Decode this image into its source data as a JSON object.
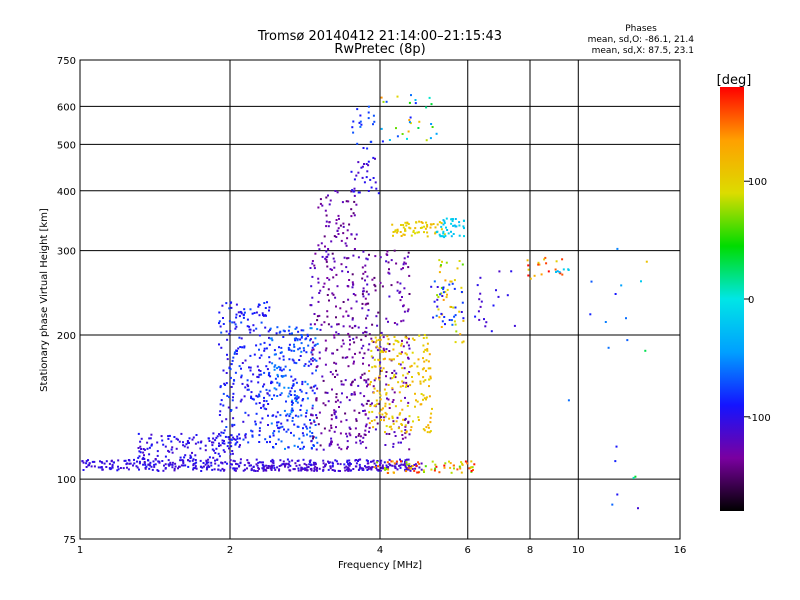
{
  "chart_data": {
    "type": "scatter",
    "title": "Tromsø 20140412 21:14:00–21:15:43",
    "subtitle": "RwPretec (8p)",
    "xlabel": "Frequency [MHz]",
    "ylabel": "Stationary phase Virtual Height [km]",
    "x_scale": "log",
    "y_scale": "log",
    "xlim": [
      1,
      16
    ],
    "ylim": [
      75,
      750
    ],
    "x_ticks": [
      1,
      2,
      4,
      6,
      8,
      10,
      16
    ],
    "y_ticks": [
      75,
      100,
      200,
      300,
      400,
      500,
      600,
      750
    ],
    "grid": true,
    "stats": {
      "heading": "Phases",
      "line1": "mean, sd,O: -86.1, 21.4",
      "line2": "mean, sd,X:  87.5, 23.1"
    },
    "colorbar": {
      "unit_label": "[deg]",
      "range": [
        -180,
        180
      ],
      "ticks": [
        100,
        0,
        -100
      ],
      "colormap": [
        "#000000",
        "#7a00a0",
        "#1414ff",
        "#00a0ff",
        "#00e6e6",
        "#00dc00",
        "#dcdc00",
        "#ffa000",
        "#ff0000"
      ]
    },
    "point_groups": [
      {
        "x": [
          1.0,
          4.6
        ],
        "y": [
          104,
          110
        ],
        "phase": [
          -115,
          -95
        ],
        "count": 340
      },
      {
        "x": [
          2.2,
          4.9
        ],
        "y": [
          104,
          108
        ],
        "phase": [
          -120,
          -110
        ],
        "count": 120
      },
      {
        "x": [
          3.9,
          6.2
        ],
        "y": [
          103,
          109
        ],
        "phase": [
          60,
          200
        ],
        "count": 70
      },
      {
        "x": [
          1.3,
          2.1
        ],
        "y": [
          106,
          125
        ],
        "phase": [
          -115,
          -90
        ],
        "count": 150
      },
      {
        "x": [
          1.9,
          2.4
        ],
        "y": [
          118,
          235
        ],
        "phase": [
          -110,
          -70
        ],
        "count": 240
      },
      {
        "x": [
          2.4,
          3.0
        ],
        "y": [
          115,
          210
        ],
        "phase": [
          -100,
          -50
        ],
        "count": 260
      },
      {
        "x": [
          2.9,
          3.8
        ],
        "y": [
          115,
          300
        ],
        "phase": [
          -150,
          -110
        ],
        "count": 300
      },
      {
        "x": [
          3.0,
          3.6
        ],
        "y": [
          300,
          400
        ],
        "phase": [
          -150,
          -115
        ],
        "count": 60
      },
      {
        "x": [
          3.5,
          4.0
        ],
        "y": [
          390,
          470
        ],
        "phase": [
          -120,
          -90
        ],
        "count": 30
      },
      {
        "x": [
          3.5,
          3.9
        ],
        "y": [
          490,
          600
        ],
        "phase": [
          -100,
          -60
        ],
        "count": 20
      },
      {
        "x": [
          3.7,
          4.6
        ],
        "y": [
          115,
          300
        ],
        "phase": [
          -150,
          -110
        ],
        "count": 170
      },
      {
        "x": [
          3.8,
          5.1
        ],
        "y": [
          125,
          200
        ],
        "phase": [
          90,
          130
        ],
        "count": 200
      },
      {
        "x": [
          4.2,
          5.4
        ],
        "y": [
          320,
          345
        ],
        "phase": [
          90,
          120
        ],
        "count": 60
      },
      {
        "x": [
          5.2,
          5.9
        ],
        "y": [
          320,
          350
        ],
        "phase": [
          -30,
          -10
        ],
        "count": 40
      },
      {
        "x": [
          4.0,
          5.2
        ],
        "y": [
          500,
          640
        ],
        "phase": [
          -100,
          140
        ],
        "count": 30
      },
      {
        "x": [
          5.2,
          5.9
        ],
        "y": [
          190,
          290
        ],
        "phase": [
          60,
          140
        ],
        "count": 40
      },
      {
        "x": [
          5.0,
          6.0
        ],
        "y": [
          210,
          260
        ],
        "phase": [
          -110,
          -60
        ],
        "count": 30
      },
      {
        "x": [
          6.2,
          7.5
        ],
        "y": [
          200,
          280
        ],
        "phase": [
          -120,
          -90
        ],
        "count": 20
      },
      {
        "x": [
          7.9,
          9.3
        ],
        "y": [
          262,
          290
        ],
        "phase": [
          100,
          180
        ],
        "count": 20
      },
      {
        "x": [
          9.0,
          9.6
        ],
        "y": [
          270,
          275
        ],
        "phase": [
          -40,
          -10
        ],
        "count": 6
      },
      {
        "x": [
          9.5,
          13.5
        ],
        "y": [
          80,
          340
        ],
        "phase": [
          -110,
          -40
        ],
        "count": 14
      },
      {
        "x": [
          12.0,
          15.0
        ],
        "y": [
          100,
          310
        ],
        "phase": [
          -120,
          120
        ],
        "count": 6
      }
    ]
  }
}
